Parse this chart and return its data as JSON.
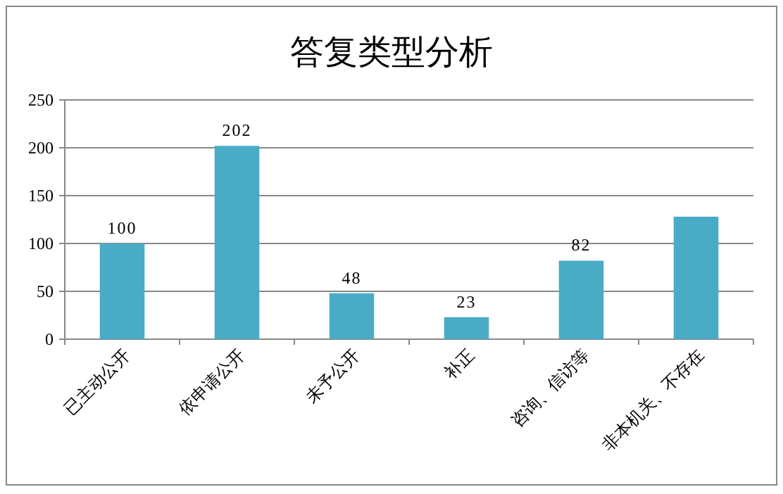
{
  "chart_data": {
    "type": "bar",
    "title": "答复类型分析",
    "categories": [
      "已主动公开",
      "依申请公开",
      "未予公开",
      "补正",
      "咨询、信访等",
      "非本机关、不存在"
    ],
    "values": [
      100,
      202,
      48,
      23,
      82,
      128
    ],
    "value_labels": [
      "100",
      "202",
      "48",
      "23",
      "82",
      null
    ],
    "color": "#4aabc6",
    "ylim": [
      0,
      250
    ],
    "yticks": [
      0,
      50,
      100,
      150,
      200,
      250
    ],
    "grid": "y",
    "legend": false
  }
}
